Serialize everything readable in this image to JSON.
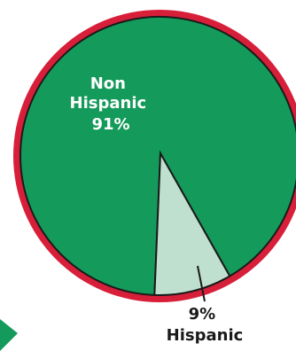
{
  "chart_data": {
    "type": "pie",
    "slices": [
      {
        "label_lines": [
          "Non",
          "Hispanic",
          "91%"
        ],
        "value": 91,
        "color": "#149a5a"
      },
      {
        "label_lines": [
          "9%",
          "Hispanic"
        ],
        "value": 9,
        "color": "#bfe0cf"
      }
    ],
    "rim_color": "#d71f3a",
    "accent_color": "#149a5a"
  }
}
